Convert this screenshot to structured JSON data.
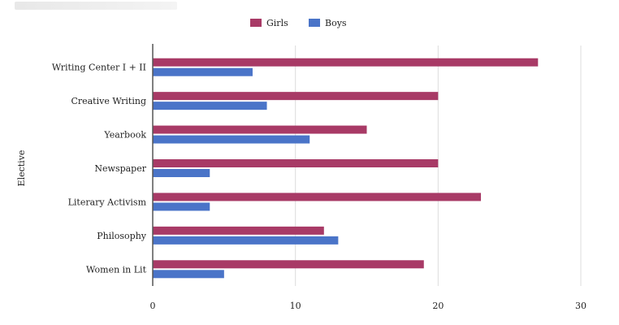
{
  "chart_data": {
    "type": "bar",
    "orientation": "horizontal",
    "title": "",
    "xlabel": "",
    "ylabel": "Elective",
    "categories": [
      "Writing Center I + II",
      "Creative Writing",
      "Yearbook",
      "Newspaper",
      "Literary Activism",
      "Philosophy",
      "Women in Lit"
    ],
    "series": [
      {
        "name": "Girls",
        "color": "#a83a66",
        "values": [
          27,
          20,
          15,
          20,
          23,
          12,
          19
        ]
      },
      {
        "name": "Boys",
        "color": "#4a74c8",
        "values": [
          7,
          8,
          11,
          4,
          4,
          13,
          5
        ]
      }
    ],
    "xlim": [
      0,
      30
    ],
    "xticks": [
      0,
      10,
      20,
      30
    ],
    "grid": true,
    "legend_position": "top"
  }
}
